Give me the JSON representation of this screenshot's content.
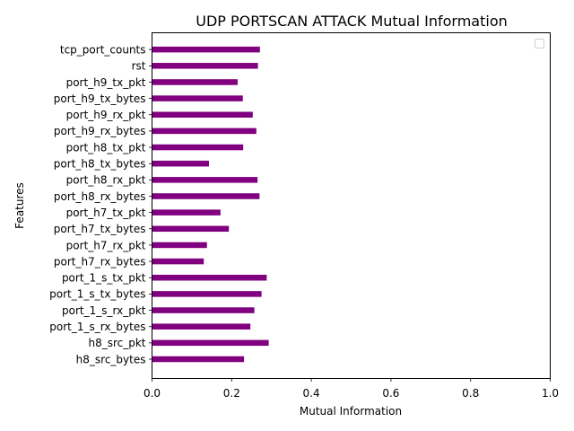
{
  "chart_data": {
    "type": "bar",
    "orientation": "horizontal",
    "title": "UDP PORTSCAN ATTACK Mutual Information",
    "xlabel": "Mutual Information",
    "ylabel": "Features",
    "xlim": [
      0,
      1.0
    ],
    "xticks": [
      "0.0",
      "0.2",
      "0.4",
      "0.6",
      "0.8",
      "1.0"
    ],
    "bar_color": "#800080",
    "legend": "top-right, empty",
    "grid": false,
    "categories": [
      "h8_src_bytes",
      "h8_src_pkt",
      "port_1_s_rx_bytes",
      "port_1_s_rx_pkt",
      "port_1_s_tx_bytes",
      "port_1_s_tx_pkt",
      "port_h7_rx_bytes",
      "port_h7_rx_pkt",
      "port_h7_tx_bytes",
      "port_h7_tx_pkt",
      "port_h8_rx_bytes",
      "port_h8_rx_pkt",
      "port_h8_tx_bytes",
      "port_h8_tx_pkt",
      "port_h9_rx_bytes",
      "port_h9_rx_pkt",
      "port_h9_tx_bytes",
      "port_h9_tx_pkt",
      "rst",
      "tcp_port_counts"
    ],
    "values": [
      0.231,
      0.293,
      0.247,
      0.257,
      0.275,
      0.288,
      0.13,
      0.138,
      0.193,
      0.172,
      0.27,
      0.265,
      0.143,
      0.229,
      0.262,
      0.253,
      0.228,
      0.215,
      0.266,
      0.271
    ]
  }
}
